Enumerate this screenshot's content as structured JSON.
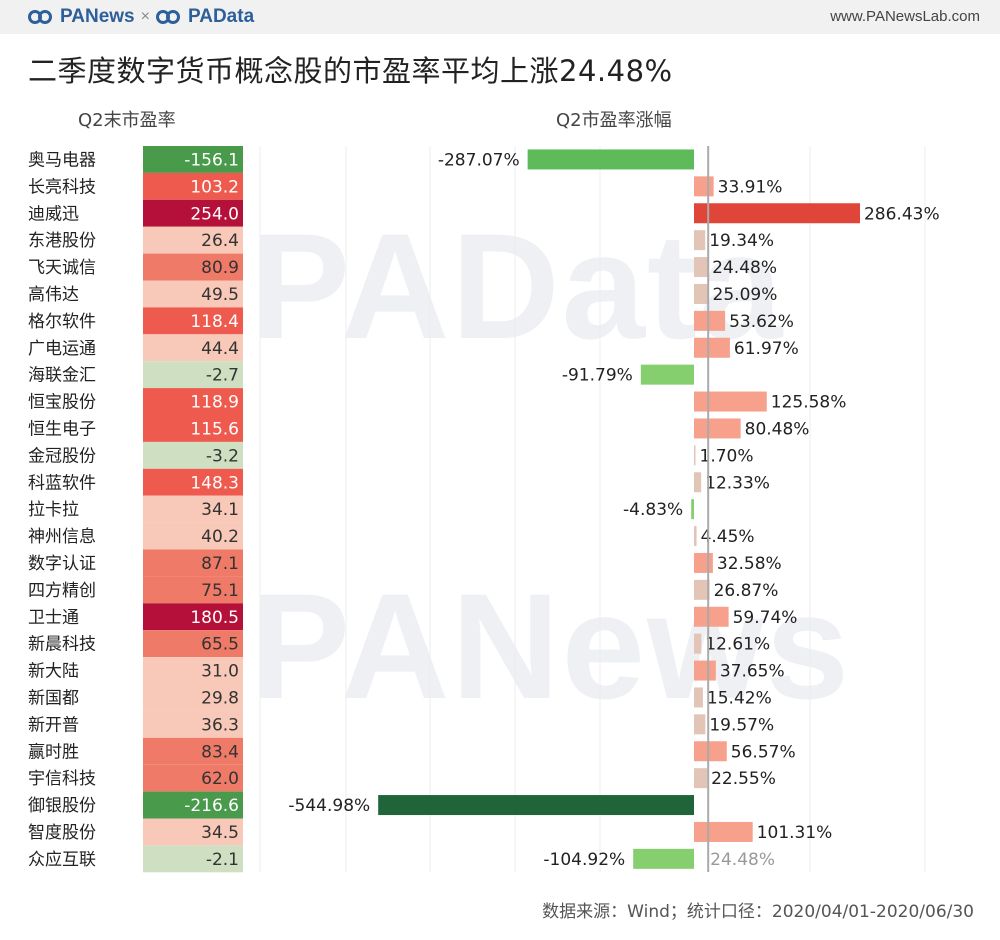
{
  "header": {
    "brand_left": "PANews",
    "brand_separator": "×",
    "brand_right": "PAData",
    "site": "www.PANewsLab.com"
  },
  "title": "二季度数字货币概念股的市盈率平均上涨24.48%",
  "watermarks": [
    "PAData",
    "PANews"
  ],
  "source": "数据来源：Wind；统计口径：2020/04/01-2020/06/30",
  "colors": {
    "pe_pos_light": "#f8c9b8",
    "pe_pos_mid": "#f07a68",
    "pe_pos_dark": "#b5103a",
    "pe_neg_light": "#cfe0c2",
    "pe_neg_dark": "#4a9a4c",
    "bar_neg_light": "#86cf6e",
    "bar_neg_mid": "#5dbb5a",
    "bar_neg_dark": "#20653a",
    "bar_pos_light": "#e2c5b7",
    "bar_pos_mid": "#f7a08c",
    "bar_pos_dark": "#e0453a",
    "avg_line": "#aaaaaa"
  },
  "chart_data": {
    "type": "bar",
    "pe_header": "Q2末市盈率",
    "change_header": "Q2市盈率涨幅",
    "categories": [
      "奥马电器",
      "长亮科技",
      "迪威迅",
      "东港股份",
      "飞天诚信",
      "高伟达",
      "格尔软件",
      "广电运通",
      "海联金汇",
      "恒宝股份",
      "恒生电子",
      "金冠股份",
      "科蓝软件",
      "拉卡拉",
      "神州信息",
      "数字认证",
      "四方精创",
      "卫士通",
      "新晨科技",
      "新大陆",
      "新国都",
      "新开普",
      "赢时胜",
      "宇信科技",
      "御银股份",
      "智度股份",
      "众应互联"
    ],
    "pe_values": [
      -156.1,
      103.2,
      254.0,
      26.4,
      80.9,
      49.5,
      118.4,
      44.4,
      -2.7,
      118.9,
      115.6,
      -3.2,
      148.3,
      34.1,
      40.2,
      87.1,
      75.1,
      180.5,
      65.5,
      31.0,
      29.8,
      36.3,
      83.4,
      62.0,
      -216.6,
      34.5,
      -2.1
    ],
    "pe_labels": [
      "-156.1",
      "103.2",
      "254.0",
      "26.4",
      "80.9",
      "49.5",
      "118.4",
      "44.4",
      "-2.7",
      "118.9",
      "115.6",
      "-3.2",
      "148.3",
      "34.1",
      "40.2",
      "87.1",
      "75.1",
      "180.5",
      "65.5",
      "31.0",
      "29.8",
      "36.3",
      "83.4",
      "62.0",
      "-216.6",
      "34.5",
      "-2.1"
    ],
    "change_values": [
      -287.07,
      33.91,
      286.43,
      19.34,
      24.48,
      25.09,
      53.62,
      61.97,
      -91.79,
      125.58,
      80.48,
      1.7,
      12.33,
      -4.83,
      4.45,
      32.58,
      26.87,
      59.74,
      12.61,
      37.65,
      15.42,
      19.57,
      56.57,
      22.55,
      -544.98,
      101.31,
      -104.92
    ],
    "change_labels": [
      "-287.07%",
      "33.91%",
      "286.43%",
      "19.34%",
      "24.48%",
      "25.09%",
      "53.62%",
      "61.97%",
      "-91.79%",
      "125.58%",
      "80.48%",
      "1.70%",
      "12.33%",
      "-4.83%",
      "4.45%",
      "32.58%",
      "26.87%",
      "59.74%",
      "12.61%",
      "37.65%",
      "15.42%",
      "19.57%",
      "56.57%",
      "22.55%",
      "-544.98%",
      "101.31%",
      "-104.92%"
    ],
    "average_change": 24.48,
    "average_label": "24.48%",
    "grid": true
  }
}
